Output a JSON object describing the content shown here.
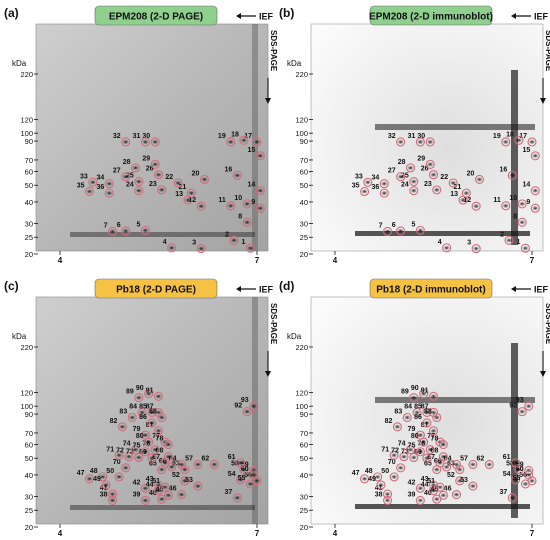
{
  "panels": [
    {
      "letter": "(a)",
      "title": "EPM208 (2-D PAGE)",
      "title_color": "#8fd08f",
      "kind": "gel",
      "spots": [
        {
          "n": "1",
          "x": 6.9,
          "y": 21.6
        },
        {
          "n": "2",
          "x": 6.65,
          "y": 24.0
        },
        {
          "n": "3",
          "x": 6.15,
          "y": 21.5
        },
        {
          "n": "4",
          "x": 5.7,
          "y": 21.7
        },
        {
          "n": "5",
          "x": 5.3,
          "y": 27.4
        },
        {
          "n": "6",
          "x": 5.0,
          "y": 27.2
        },
        {
          "n": "7",
          "x": 4.8,
          "y": 27.0
        },
        {
          "n": "8",
          "x": 6.85,
          "y": 30.5
        },
        {
          "n": "9",
          "x": 7.05,
          "y": 36.8
        },
        {
          "n": "10",
          "x": 6.85,
          "y": 39.0
        },
        {
          "n": "11",
          "x": 6.6,
          "y": 38.0
        },
        {
          "n": "12",
          "x": 6.15,
          "y": 37.8
        },
        {
          "n": "13",
          "x": 5.95,
          "y": 41.0
        },
        {
          "n": "14",
          "x": 7.05,
          "y": 46.5
        },
        {
          "n": "15",
          "x": 7.05,
          "y": 74.0
        },
        {
          "n": "16",
          "x": 6.7,
          "y": 57.0
        },
        {
          "n": "17",
          "x": 7.0,
          "y": 89.0
        },
        {
          "n": "18",
          "x": 6.8,
          "y": 91.0
        },
        {
          "n": "19",
          "x": 6.6,
          "y": 89.0
        },
        {
          "n": "20",
          "x": 6.2,
          "y": 54.0
        },
        {
          "n": "21",
          "x": 6.0,
          "y": 45.0
        },
        {
          "n": "22",
          "x": 5.8,
          "y": 51.5
        },
        {
          "n": "23",
          "x": 5.55,
          "y": 47.0
        },
        {
          "n": "24",
          "x": 5.2,
          "y": 46.5
        },
        {
          "n": "25",
          "x": 5.2,
          "y": 52.5
        },
        {
          "n": "26",
          "x": 5.5,
          "y": 57.5
        },
        {
          "n": "27",
          "x": 5.0,
          "y": 56.0
        },
        {
          "n": "28",
          "x": 5.15,
          "y": 63.0
        },
        {
          "n": "29",
          "x": 5.45,
          "y": 66.0
        },
        {
          "n": "30",
          "x": 5.45,
          "y": 89.0
        },
        {
          "n": "31",
          "x": 5.3,
          "y": 89.0
        },
        {
          "n": "32",
          "x": 5.0,
          "y": 89.0
        },
        {
          "n": "33",
          "x": 4.5,
          "y": 52.0
        },
        {
          "n": "34",
          "x": 4.75,
          "y": 51.0
        },
        {
          "n": "35",
          "x": 4.45,
          "y": 46.0
        },
        {
          "n": "36",
          "x": 4.75,
          "y": 45.0
        }
      ]
    },
    {
      "letter": "(b)",
      "title": "EPM208 (2-D immunoblot)",
      "title_color": "#8fd08f",
      "kind": "blot",
      "spots": [
        {
          "n": "1",
          "x": 6.9,
          "y": 21.6
        },
        {
          "n": "2",
          "x": 6.65,
          "y": 24.0
        },
        {
          "n": "3",
          "x": 6.15,
          "y": 21.5
        },
        {
          "n": "4",
          "x": 5.7,
          "y": 21.7
        },
        {
          "n": "5",
          "x": 5.3,
          "y": 27.4
        },
        {
          "n": "6",
          "x": 5.0,
          "y": 27.2
        },
        {
          "n": "7",
          "x": 4.8,
          "y": 27.0
        },
        {
          "n": "8",
          "x": 6.85,
          "y": 30.5
        },
        {
          "n": "9",
          "x": 7.05,
          "y": 36.8
        },
        {
          "n": "10",
          "x": 6.85,
          "y": 39.0
        },
        {
          "n": "11",
          "x": 6.6,
          "y": 38.0
        },
        {
          "n": "12",
          "x": 6.15,
          "y": 37.8
        },
        {
          "n": "13",
          "x": 5.95,
          "y": 41.0
        },
        {
          "n": "14",
          "x": 7.05,
          "y": 46.5
        },
        {
          "n": "15",
          "x": 7.05,
          "y": 74.0
        },
        {
          "n": "16",
          "x": 6.7,
          "y": 57.0
        },
        {
          "n": "17",
          "x": 7.0,
          "y": 89.0
        },
        {
          "n": "18",
          "x": 6.8,
          "y": 91.0
        },
        {
          "n": "19",
          "x": 6.6,
          "y": 89.0
        },
        {
          "n": "20",
          "x": 6.2,
          "y": 54.0
        },
        {
          "n": "21",
          "x": 6.0,
          "y": 45.0
        },
        {
          "n": "22",
          "x": 5.8,
          "y": 51.5
        },
        {
          "n": "23",
          "x": 5.55,
          "y": 47.0
        },
        {
          "n": "24",
          "x": 5.2,
          "y": 46.5
        },
        {
          "n": "25",
          "x": 5.2,
          "y": 52.5
        },
        {
          "n": "26",
          "x": 5.5,
          "y": 57.5
        },
        {
          "n": "27",
          "x": 5.0,
          "y": 56.0
        },
        {
          "n": "28",
          "x": 5.15,
          "y": 63.0
        },
        {
          "n": "29",
          "x": 5.45,
          "y": 66.0
        },
        {
          "n": "30",
          "x": 5.45,
          "y": 89.0
        },
        {
          "n": "31",
          "x": 5.3,
          "y": 89.0
        },
        {
          "n": "32",
          "x": 5.0,
          "y": 89.0
        },
        {
          "n": "33",
          "x": 4.5,
          "y": 52.0
        },
        {
          "n": "34",
          "x": 4.75,
          "y": 51.0
        },
        {
          "n": "35",
          "x": 4.45,
          "y": 46.0
        },
        {
          "n": "36",
          "x": 4.75,
          "y": 45.0
        }
      ]
    },
    {
      "letter": "(c)",
      "title": "Pb18 (2-D PAGE)",
      "title_color": "#f6c244",
      "kind": "gel",
      "spots": [
        {
          "n": "37",
          "x": 6.7,
          "y": 29.5
        },
        {
          "n": "38",
          "x": 4.8,
          "y": 28.5
        },
        {
          "n": "39",
          "x": 5.3,
          "y": 28.5
        },
        {
          "n": "40",
          "x": 5.55,
          "y": 29.0
        },
        {
          "n": "41",
          "x": 4.8,
          "y": 31.0
        },
        {
          "n": "42",
          "x": 5.3,
          "y": 33.5
        },
        {
          "n": "43",
          "x": 5.5,
          "y": 35.0
        },
        {
          "n": "44",
          "x": 5.5,
          "y": 32.5
        },
        {
          "n": "45",
          "x": 5.65,
          "y": 30.5
        },
        {
          "n": "46",
          "x": 5.85,
          "y": 30.8
        },
        {
          "n": "47",
          "x": 4.45,
          "y": 38.0
        },
        {
          "n": "48",
          "x": 4.65,
          "y": 39.0
        },
        {
          "n": "49",
          "x": 4.7,
          "y": 35.0
        },
        {
          "n": "50",
          "x": 4.9,
          "y": 39.0
        },
        {
          "n": "51",
          "x": 5.6,
          "y": 34.0
        },
        {
          "n": "52",
          "x": 5.9,
          "y": 37.0
        },
        {
          "n": "53",
          "x": 6.1,
          "y": 34.5
        },
        {
          "n": "54",
          "x": 6.75,
          "y": 37.5
        },
        {
          "n": "55",
          "x": 6.9,
          "y": 35.5
        },
        {
          "n": "56",
          "x": 7.0,
          "y": 37.0
        },
        {
          "n": "57",
          "x": 6.1,
          "y": 46.0
        },
        {
          "n": "58",
          "x": 6.8,
          "y": 43.0
        },
        {
          "n": "59",
          "x": 6.95,
          "y": 42.5
        },
        {
          "n": "60",
          "x": 6.95,
          "y": 40.0
        },
        {
          "n": "61",
          "x": 6.75,
          "y": 47.0
        },
        {
          "n": "62",
          "x": 6.35,
          "y": 46.0
        },
        {
          "n": "63",
          "x": 5.9,
          "y": 43.0
        },
        {
          "n": "64",
          "x": 5.85,
          "y": 46.0
        },
        {
          "n": "65",
          "x": 5.55,
          "y": 43.0
        },
        {
          "n": "66",
          "x": 5.7,
          "y": 44.5
        },
        {
          "n": "67",
          "x": 5.6,
          "y": 47.0
        },
        {
          "n": "68",
          "x": 5.65,
          "y": 51.0
        },
        {
          "n": "69",
          "x": 5.4,
          "y": 50.0
        },
        {
          "n": "70",
          "x": 5.0,
          "y": 44.0
        },
        {
          "n": "71",
          "x": 4.9,
          "y": 52.0
        },
        {
          "n": "72",
          "x": 5.05,
          "y": 51.0
        },
        {
          "n": "73",
          "x": 5.2,
          "y": 50.5
        },
        {
          "n": "74",
          "x": 5.15,
          "y": 56.0
        },
        {
          "n": "75",
          "x": 5.3,
          "y": 54.5
        },
        {
          "n": "76",
          "x": 5.45,
          "y": 56.0
        },
        {
          "n": "77",
          "x": 5.6,
          "y": 62.0
        },
        {
          "n": "78",
          "x": 5.65,
          "y": 60.0
        },
        {
          "n": "79",
          "x": 5.3,
          "y": 68.0
        },
        {
          "n": "80",
          "x": 5.35,
          "y": 62.0
        },
        {
          "n": "81",
          "x": 5.5,
          "y": 72.0
        },
        {
          "n": "82",
          "x": 4.95,
          "y": 76.0
        },
        {
          "n": "83",
          "x": 5.1,
          "y": 86.0
        },
        {
          "n": "84",
          "x": 5.25,
          "y": 92.0
        },
        {
          "n": "85",
          "x": 5.4,
          "y": 92.0
        },
        {
          "n": "86",
          "x": 5.4,
          "y": 80.0
        },
        {
          "n": "87",
          "x": 5.5,
          "y": 92.0
        },
        {
          "n": "88",
          "x": 5.55,
          "y": 86.0
        },
        {
          "n": "89",
          "x": 5.2,
          "y": 112.0
        },
        {
          "n": "90",
          "x": 5.35,
          "y": 118.0
        },
        {
          "n": "91",
          "x": 5.5,
          "y": 114.0
        },
        {
          "n": "92",
          "x": 6.85,
          "y": 93.0
        },
        {
          "n": "93",
          "x": 6.95,
          "y": 100.0
        }
      ]
    },
    {
      "letter": "(d)",
      "title": "Pb18 (2-D immunoblot)",
      "title_color": "#f6c244",
      "kind": "blot",
      "spots": [
        {
          "n": "37",
          "x": 6.7,
          "y": 29.5
        },
        {
          "n": "38",
          "x": 4.8,
          "y": 28.5
        },
        {
          "n": "39",
          "x": 5.3,
          "y": 28.5
        },
        {
          "n": "40",
          "x": 5.55,
          "y": 29.0
        },
        {
          "n": "41",
          "x": 4.8,
          "y": 31.0
        },
        {
          "n": "42",
          "x": 5.3,
          "y": 33.5
        },
        {
          "n": "43",
          "x": 5.5,
          "y": 35.0
        },
        {
          "n": "44",
          "x": 5.5,
          "y": 32.5
        },
        {
          "n": "45",
          "x": 5.65,
          "y": 30.5
        },
        {
          "n": "46",
          "x": 5.85,
          "y": 30.8
        },
        {
          "n": "47",
          "x": 4.45,
          "y": 38.0
        },
        {
          "n": "48",
          "x": 4.65,
          "y": 39.0
        },
        {
          "n": "49",
          "x": 4.7,
          "y": 35.0
        },
        {
          "n": "50",
          "x": 4.9,
          "y": 39.0
        },
        {
          "n": "51",
          "x": 5.6,
          "y": 34.0
        },
        {
          "n": "52",
          "x": 5.9,
          "y": 37.0
        },
        {
          "n": "53",
          "x": 6.1,
          "y": 34.5
        },
        {
          "n": "54",
          "x": 6.75,
          "y": 37.5
        },
        {
          "n": "55",
          "x": 6.9,
          "y": 35.5
        },
        {
          "n": "56",
          "x": 7.0,
          "y": 37.0
        },
        {
          "n": "57",
          "x": 6.1,
          "y": 46.0
        },
        {
          "n": "58",
          "x": 6.8,
          "y": 43.0
        },
        {
          "n": "59",
          "x": 6.95,
          "y": 42.5
        },
        {
          "n": "60",
          "x": 6.95,
          "y": 40.0
        },
        {
          "n": "61",
          "x": 6.75,
          "y": 47.0
        },
        {
          "n": "62",
          "x": 6.35,
          "y": 46.0
        },
        {
          "n": "63",
          "x": 5.9,
          "y": 43.0
        },
        {
          "n": "64",
          "x": 5.85,
          "y": 46.0
        },
        {
          "n": "65",
          "x": 5.55,
          "y": 43.0
        },
        {
          "n": "66",
          "x": 5.7,
          "y": 44.5
        },
        {
          "n": "67",
          "x": 5.6,
          "y": 47.0
        },
        {
          "n": "68",
          "x": 5.65,
          "y": 51.0
        },
        {
          "n": "69",
          "x": 5.4,
          "y": 50.0
        },
        {
          "n": "70",
          "x": 5.0,
          "y": 44.0
        },
        {
          "n": "71",
          "x": 4.9,
          "y": 52.0
        },
        {
          "n": "72",
          "x": 5.05,
          "y": 51.0
        },
        {
          "n": "73",
          "x": 5.2,
          "y": 50.5
        },
        {
          "n": "74",
          "x": 5.15,
          "y": 56.0
        },
        {
          "n": "75",
          "x": 5.3,
          "y": 54.5
        },
        {
          "n": "76",
          "x": 5.45,
          "y": 56.0
        },
        {
          "n": "77",
          "x": 5.6,
          "y": 62.0
        },
        {
          "n": "78",
          "x": 5.65,
          "y": 60.0
        },
        {
          "n": "79",
          "x": 5.3,
          "y": 68.0
        },
        {
          "n": "80",
          "x": 5.35,
          "y": 62.0
        },
        {
          "n": "81",
          "x": 5.5,
          "y": 72.0
        },
        {
          "n": "82",
          "x": 4.95,
          "y": 76.0
        },
        {
          "n": "83",
          "x": 5.1,
          "y": 86.0
        },
        {
          "n": "84",
          "x": 5.25,
          "y": 92.0
        },
        {
          "n": "85",
          "x": 5.4,
          "y": 92.0
        },
        {
          "n": "86",
          "x": 5.4,
          "y": 80.0
        },
        {
          "n": "87",
          "x": 5.5,
          "y": 92.0
        },
        {
          "n": "88",
          "x": 5.55,
          "y": 86.0
        },
        {
          "n": "89",
          "x": 5.2,
          "y": 112.0
        },
        {
          "n": "90",
          "x": 5.35,
          "y": 118.0
        },
        {
          "n": "91",
          "x": 5.5,
          "y": 114.0
        },
        {
          "n": "92",
          "x": 6.85,
          "y": 93.0
        },
        {
          "n": "93",
          "x": 6.95,
          "y": 100.0
        }
      ]
    }
  ],
  "axes": {
    "kda_label": "kDa",
    "mw_ticks": [
      "220",
      "120",
      "100",
      "90",
      "70",
      "60",
      "50",
      "40",
      "30",
      "25",
      "20"
    ],
    "mw_values": [
      220,
      120,
      100,
      90,
      70,
      60,
      50,
      40,
      30,
      25,
      20
    ],
    "pi_ticks": [
      "4",
      "7"
    ],
    "pi_values": [
      4,
      7
    ],
    "ief_label": "IEF",
    "sds_label": "SDS-PAGE"
  },
  "colors": {
    "circle": "#d26a7a",
    "gel_bg": "#b8b8b8",
    "blot_bg": "#f4f4f4",
    "spot_label": "#111111"
  }
}
